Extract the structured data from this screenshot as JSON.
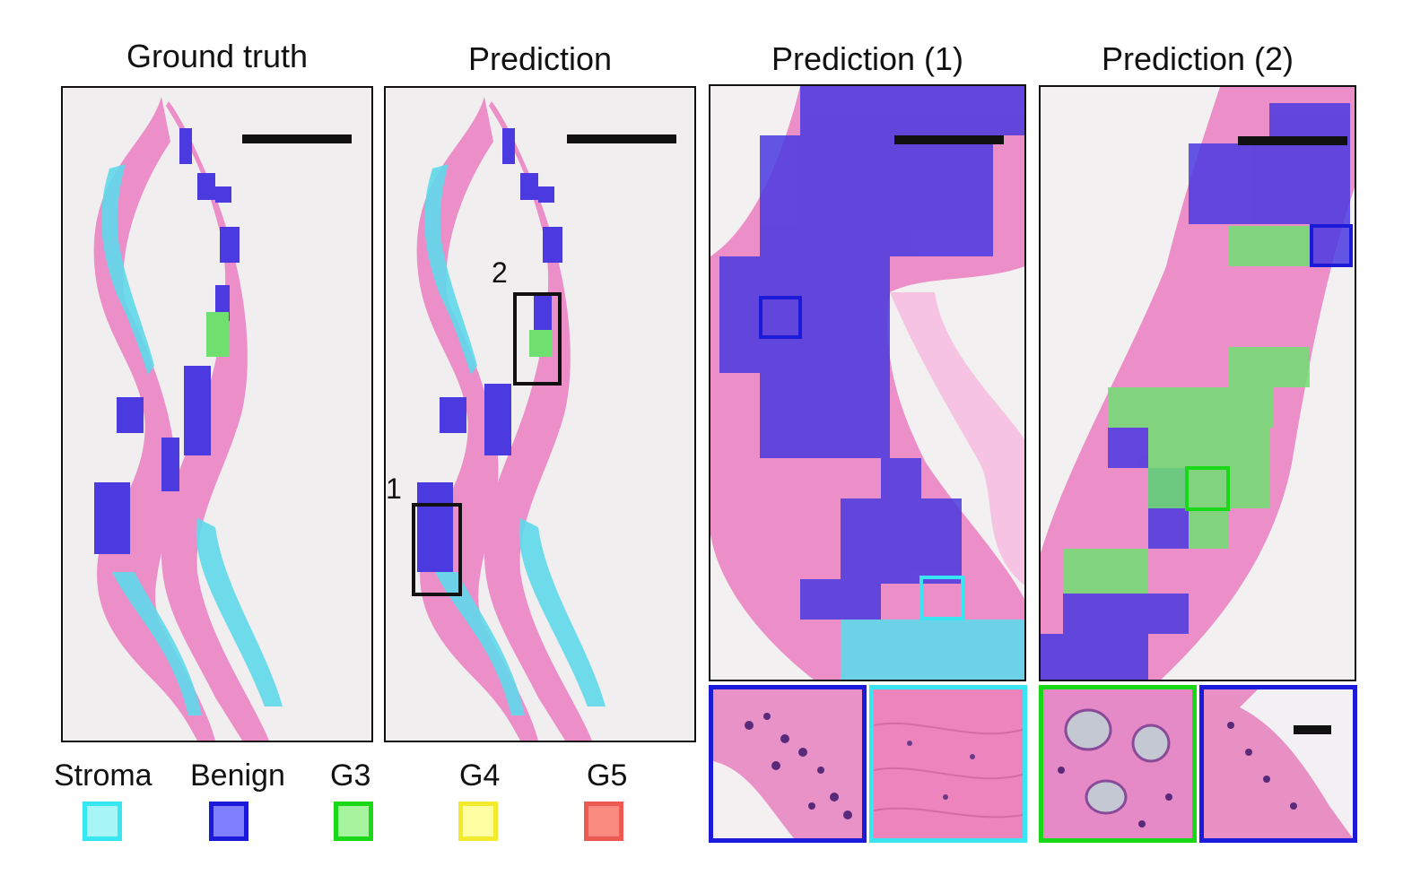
{
  "titles": {
    "ground_truth": "Ground truth",
    "prediction": "Prediction",
    "prediction_1": "Prediction (1)",
    "prediction_2": "Prediction (2)"
  },
  "region_labels": {
    "region_1": "1",
    "region_2": "2"
  },
  "legend": [
    {
      "label": "Stroma",
      "fill": "#a8f5f8",
      "border": "#38e6f2"
    },
    {
      "label": "Benign",
      "fill": "#7f7fff",
      "border": "#1a1ad8"
    },
    {
      "label": "G3",
      "fill": "#a6f39e",
      "border": "#18d818"
    },
    {
      "label": "G4",
      "fill": "#fffea0",
      "border": "#f2ea2c"
    },
    {
      "label": "G5",
      "fill": "#f88a80",
      "border": "#ec5a52"
    }
  ],
  "colors": {
    "tissue_pink": "#ec8ec8",
    "tissue_light": "#f6c4e2",
    "background": "#f0eeef",
    "stroma": "#5fd8ea",
    "benign": "#4a3ae0",
    "g3": "#6fe070",
    "scale_bar": "#111111"
  }
}
